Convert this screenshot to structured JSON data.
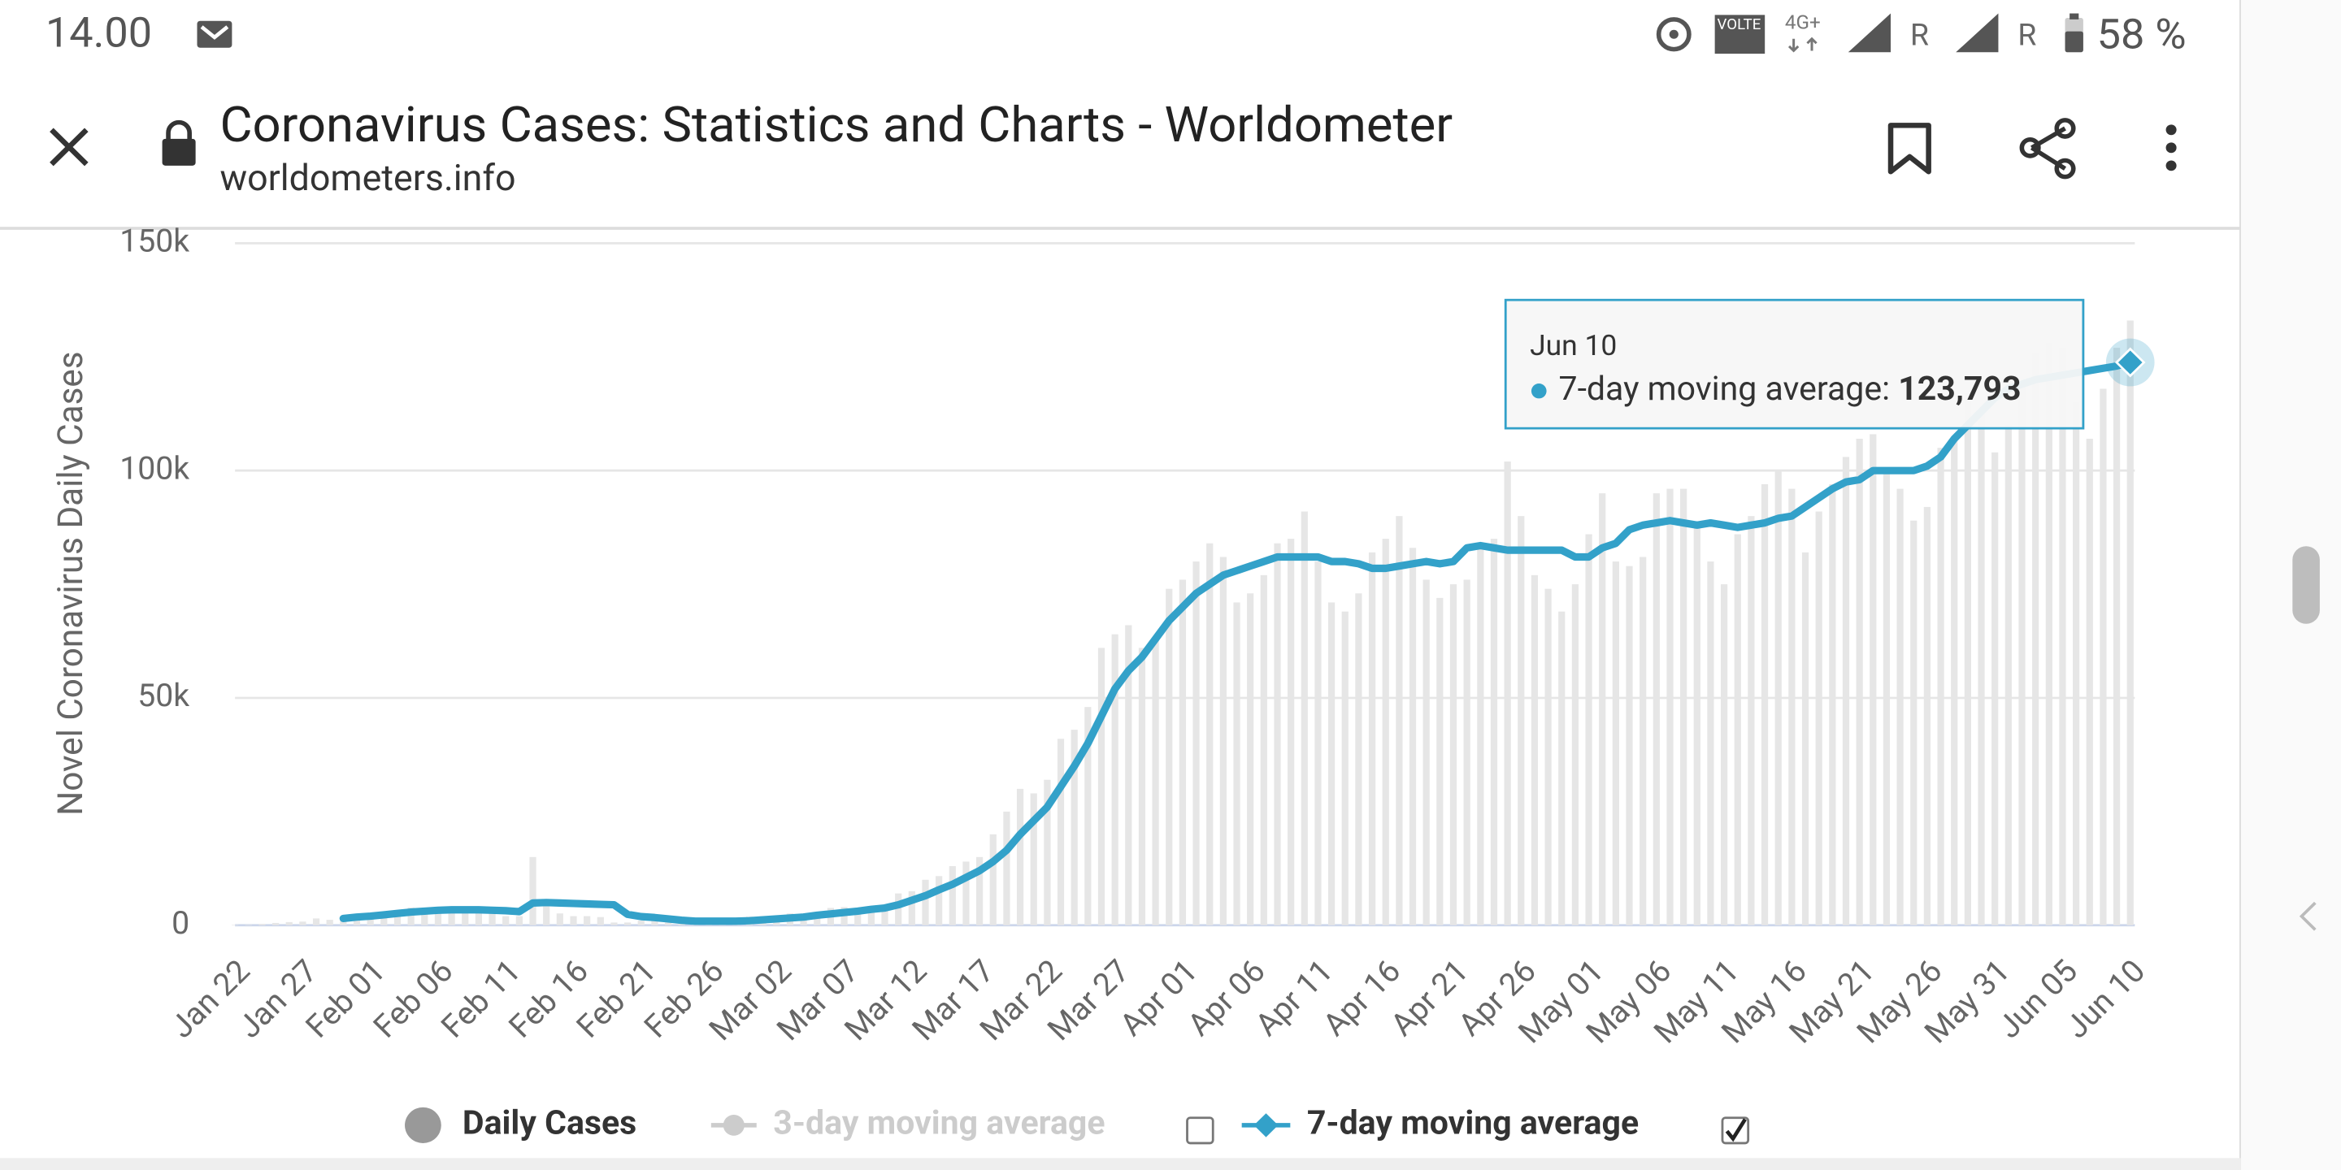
{
  "status_bar": {
    "time": "14.00",
    "volte": "VOLTE",
    "network": "4G+",
    "roaming_1": "R",
    "roaming_2": "R",
    "battery": "58 %"
  },
  "browser": {
    "title": "Coronavirus Cases: Statistics and Charts - Worldometer",
    "url": "worldometers.info"
  },
  "chart_data": {
    "type": "bar-line",
    "y_label": "Novel Coronavirus Daily Cases",
    "ylim": [
      0,
      150000
    ],
    "yticks": [
      0,
      {
        "value": 50000,
        "label": "50k"
      },
      {
        "value": 100000,
        "label": "100k"
      },
      {
        "value": 150000,
        "label": "150k"
      }
    ],
    "grid": true,
    "categories": [
      "Jan 22",
      null,
      null,
      null,
      null,
      "Jan 27",
      null,
      null,
      null,
      null,
      "Feb 01",
      null,
      null,
      null,
      null,
      "Feb 06",
      null,
      null,
      null,
      null,
      "Feb 11",
      null,
      null,
      null,
      null,
      "Feb 16",
      null,
      null,
      null,
      null,
      "Feb 21",
      null,
      null,
      null,
      null,
      "Feb 26",
      null,
      null,
      null,
      null,
      "Mar 02",
      null,
      null,
      null,
      null,
      "Mar 07",
      null,
      null,
      null,
      null,
      "Mar 12",
      null,
      null,
      null,
      null,
      "Mar 17",
      null,
      null,
      null,
      null,
      "Mar 22",
      null,
      null,
      null,
      null,
      "Mar 27",
      null,
      null,
      null,
      null,
      "Apr 01",
      null,
      null,
      null,
      null,
      "Apr 06",
      null,
      null,
      null,
      null,
      "Apr 11",
      null,
      null,
      null,
      null,
      "Apr 16",
      null,
      null,
      null,
      null,
      "Apr 21",
      null,
      null,
      null,
      null,
      "Apr 26",
      null,
      null,
      null,
      null,
      "May 01",
      null,
      null,
      null,
      null,
      "May 06",
      null,
      null,
      null,
      null,
      "May 11",
      null,
      null,
      null,
      null,
      "May 16",
      null,
      null,
      null,
      null,
      "May 21",
      null,
      null,
      null,
      null,
      "May 26",
      null,
      null,
      null,
      null,
      "May 31",
      null,
      null,
      null,
      null,
      "Jun 05",
      null,
      null,
      null,
      null,
      "Jun 10"
    ],
    "series": [
      {
        "name": "Daily Cases",
        "type": "bar",
        "color": "#e6e6e6",
        "legend_color": "#999999",
        "values": [
          100,
          100,
          300,
          500,
          700,
          800,
          1500,
          1200,
          1700,
          2000,
          2100,
          2600,
          3200,
          3900,
          3700,
          3200,
          3400,
          2700,
          3000,
          2600,
          2000,
          2000,
          15000,
          5100,
          2600,
          2000,
          2000,
          1800,
          600,
          600,
          1000,
          1000,
          600,
          500,
          900,
          900,
          1300,
          1400,
          1900,
          2000,
          1800,
          2600,
          2300,
          2700,
          3800,
          4000,
          3800,
          3700,
          4500,
          7000,
          7500,
          10000,
          10800,
          13000,
          14000,
          15000,
          20000,
          25000,
          30000,
          29000,
          32000,
          41000,
          43000,
          48000,
          61000,
          64000,
          66000,
          61000,
          63000,
          74000,
          76000,
          80000,
          84000,
          81000,
          71000,
          73000,
          77000,
          84000,
          85000,
          91000,
          80000,
          71000,
          69000,
          73000,
          82000,
          85000,
          90000,
          83000,
          76000,
          72000,
          75000,
          76000,
          83000,
          85000,
          102000,
          90000,
          77000,
          74000,
          69000,
          75000,
          86000,
          95000,
          80000,
          79000,
          81000,
          95000,
          96000,
          96000,
          88000,
          80000,
          75000,
          86000,
          90000,
          97000,
          100000,
          96000,
          82000,
          91000,
          97000,
          103000,
          107000,
          108000,
          100000,
          96000,
          89000,
          92000,
          105000,
          107000,
          117000,
          113000,
          104000,
          110000,
          119000,
          126000,
          128000,
          127000,
          115000,
          107000,
          118000,
          127000,
          133000
        ]
      },
      {
        "name": "7-day moving average",
        "type": "line",
        "color": "#33a1c9",
        "values": [
          null,
          null,
          null,
          null,
          null,
          null,
          null,
          null,
          1500,
          1800,
          2000,
          2300,
          2600,
          2900,
          3100,
          3300,
          3400,
          3400,
          3400,
          3300,
          3200,
          3000,
          4900,
          5000,
          4900,
          4800,
          4700,
          4600,
          4500,
          2400,
          1900,
          1700,
          1400,
          1100,
          900,
          900,
          900,
          900,
          1000,
          1200,
          1400,
          1600,
          1800,
          2200,
          2500,
          2800,
          3100,
          3500,
          3800,
          4500,
          5500,
          6500,
          7800,
          9000,
          10500,
          12000,
          14000,
          16500,
          20000,
          23000,
          26000,
          30500,
          35000,
          40000,
          46000,
          52000,
          56000,
          59000,
          63000,
          67000,
          70000,
          73000,
          75000,
          77000,
          78000,
          79000,
          80000,
          81000,
          81000,
          81000,
          81000,
          80000,
          80000,
          79500,
          78500,
          78500,
          79000,
          79500,
          80000,
          79500,
          80000,
          83000,
          83500,
          83000,
          82500,
          82500,
          82500,
          82500,
          82500,
          81000,
          81000,
          83000,
          84000,
          87000,
          88000,
          88500,
          89000,
          88500,
          88000,
          88500,
          88000,
          87500,
          88000,
          88500,
          89500,
          90000,
          92000,
          94000,
          96000,
          97500,
          98000,
          100000,
          100000,
          100000,
          100000,
          101000,
          103000,
          107000,
          110000,
          113000,
          116000,
          118000,
          119000,
          120000,
          120500,
          121000,
          121500,
          122000,
          122500,
          123000,
          123793
        ]
      }
    ],
    "legend_inactive": {
      "name": "3-day moving average",
      "color": "#cccccc"
    },
    "legend_checkboxes": [
      false,
      true
    ],
    "tooltip": {
      "series_label": "7-day moving average:",
      "value_label": "123,793"
    }
  }
}
